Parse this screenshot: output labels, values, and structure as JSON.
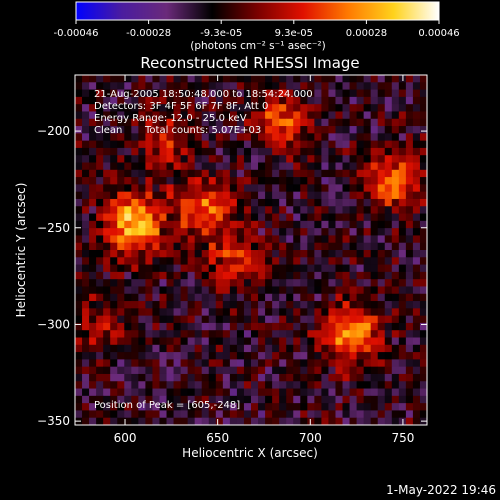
{
  "colorbar": {
    "ticks": [
      "-0.00046",
      "-0.00028",
      "-9.3e-05",
      "9.3e-05",
      "0.00028",
      "0.00046"
    ],
    "unit_label": "(photons cm⁻² s⁻¹ asec⁻²)",
    "stops": [
      "#0000ff",
      "#4a1ca0",
      "#6a2a7a",
      "#000000",
      "#7a0000",
      "#e01000",
      "#ff7a00",
      "#ffd21c",
      "#ffffff"
    ]
  },
  "annotations": {
    "line1": "21-Aug-2005 18:50:48.000 to 18:54:24.000",
    "line2": "Detectors: 3F 4F 5F 6F 7F 8F, Att 0",
    "line3": "Energy Range: 12.0 - 25.0 keV",
    "line4_left": "Clean",
    "line4_right": "Total counts: 5.07E+03",
    "peak": "Position of Peak = [605,-248]"
  },
  "footer": {
    "timestamp": "1-May-2022 19:46"
  },
  "chart_data": {
    "type": "heatmap",
    "title": "Reconstructed RHESSI Image",
    "xlabel": "Heliocentric X (arcsec)",
    "ylabel": "Heliocentric Y (arcsec)",
    "xlim": [
      573,
      763
    ],
    "ylim": [
      -352,
      -171
    ],
    "xticks": [
      600,
      650,
      700,
      750
    ],
    "yticks": [
      -200,
      -250,
      -300,
      -350
    ],
    "zlim": [
      -0.00046,
      0.00046
    ],
    "peak_position": [
      605,
      -248
    ],
    "sources": [
      {
        "x": 643,
        "y": -240,
        "peak": 0.00032
      },
      {
        "x": 605,
        "y": -248,
        "peak": 0.00046
      },
      {
        "x": 722,
        "y": -305,
        "peak": 0.0004
      },
      {
        "x": 745,
        "y": -225,
        "peak": 0.0003
      },
      {
        "x": 685,
        "y": -195,
        "peak": 0.00028
      },
      {
        "x": 660,
        "y": -268,
        "peak": 0.00022
      },
      {
        "x": 622,
        "y": -205,
        "peak": 0.00018
      },
      {
        "x": 585,
        "y": -300,
        "peak": 0.00016
      }
    ],
    "background_level": -0.00012
  }
}
